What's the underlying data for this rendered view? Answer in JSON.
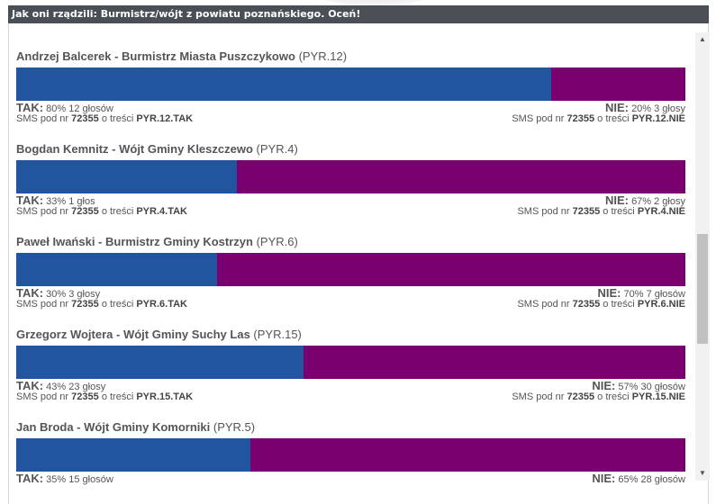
{
  "header": {
    "title": "Jak oni rządzili: Burmistrz/wójt z powiatu poznańskiego. Oceń!"
  },
  "sms": {
    "prefix": "SMS pod nr",
    "number": "72355",
    "middle": "o treści"
  },
  "labels": {
    "yes": "TAK:",
    "no": "NIE:"
  },
  "entries": [
    {
      "name": "Andrzej Balcerek - Burmistrz Miasta Puszczykowo",
      "code": "(PYR.12)",
      "yes_share": 0.8,
      "yes_detail": "80% 12 głosów",
      "no_detail": "20% 3 głosy",
      "sms_yes": "PYR.12.TAK",
      "sms_no": "PYR.12.NIE"
    },
    {
      "name": "Bogdan Kemnitz - Wójt Gminy Kleszczewo",
      "code": "(PYR.4)",
      "yes_share": 0.33,
      "yes_detail": "33% 1 głos",
      "no_detail": "67% 2 głosy",
      "sms_yes": "PYR.4.TAK",
      "sms_no": "PYR.4.NIE"
    },
    {
      "name": "Paweł Iwański - Burmistrz Gminy Kostrzyn",
      "code": "(PYR.6)",
      "yes_share": 0.3,
      "yes_detail": "30% 3 głosy",
      "no_detail": "70% 7 głosów",
      "sms_yes": "PYR.6.TAK",
      "sms_no": "PYR.6.NIE"
    },
    {
      "name": "Grzegorz Wojtera - Wójt Gminy Suchy Las",
      "code": "(PYR.15)",
      "yes_share": 0.43,
      "yes_detail": "43% 23 głosy",
      "no_detail": "57% 30 głosów",
      "sms_yes": "PYR.15.TAK",
      "sms_no": "PYR.15.NIE"
    },
    {
      "name": "Jan Broda - Wójt Gminy Komorniki",
      "code": "(PYR.5)",
      "yes_share": 0.35,
      "yes_detail": "35% 15 głosów",
      "no_detail": "65% 28 głosów",
      "sms_yes": "",
      "sms_no": ""
    }
  ],
  "colors": {
    "yes": "#21559f",
    "no": "#7a0070",
    "header": "#4a4f56"
  },
  "scrollbar": {
    "up_icon": "triangle-up",
    "down_icon": "triangle-down"
  }
}
